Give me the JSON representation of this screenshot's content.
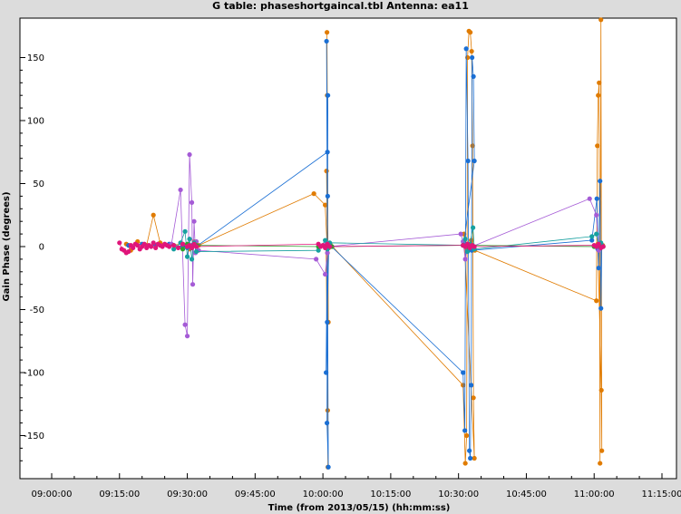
{
  "chart_data": {
    "type": "scatter",
    "title": "G table: phaseshortgaincal.tbl   Antenna: ea11",
    "xlabel": "Time (from 2013/05/15) (hh:mm:ss)",
    "ylabel": "Gain Phase (degrees)",
    "x_unit": "minutes after 09:00:00",
    "xlim": [
      0,
      135
    ],
    "ylim": [
      -180,
      180
    ],
    "x_ticks": [
      {
        "v": 0,
        "label": "09:00:00"
      },
      {
        "v": 15,
        "label": "09:15:00"
      },
      {
        "v": 30,
        "label": "09:30:00"
      },
      {
        "v": 45,
        "label": "09:45:00"
      },
      {
        "v": 60,
        "label": "10:00:00"
      },
      {
        "v": 75,
        "label": "10:15:00"
      },
      {
        "v": 90,
        "label": "10:30:00"
      },
      {
        "v": 105,
        "label": "10:45:00"
      },
      {
        "v": 120,
        "label": "11:00:00"
      },
      {
        "v": 135,
        "label": "11:15:00"
      }
    ],
    "y_ticks": [
      {
        "v": 150,
        "label": "150"
      },
      {
        "v": 100,
        "label": "100"
      },
      {
        "v": 50,
        "label": "50"
      },
      {
        "v": 0,
        "label": "0"
      },
      {
        "v": -50,
        "label": "-50"
      },
      {
        "v": -100,
        "label": "-100"
      },
      {
        "v": -150,
        "label": "-150"
      }
    ],
    "grid": false,
    "legend": "none",
    "series": [
      {
        "color": "#e07b00",
        "points": [
          [
            16.5,
            2
          ],
          [
            17.5,
            -3
          ],
          [
            19,
            4
          ],
          [
            21,
            1
          ],
          [
            22.5,
            25
          ],
          [
            24,
            3
          ],
          [
            26,
            1
          ],
          [
            29,
            2
          ],
          [
            30.5,
            -2
          ],
          [
            31.5,
            4
          ],
          [
            32.5,
            1
          ],
          [
            58,
            42
          ],
          [
            60.5,
            33
          ],
          [
            61,
            -5
          ],
          [
            60.8,
            60
          ],
          [
            61.2,
            -60
          ],
          [
            60.9,
            170
          ],
          [
            61.1,
            -175
          ],
          [
            60.95,
            120
          ],
          [
            61.05,
            -130
          ],
          [
            60.7,
            1
          ],
          [
            61.3,
            -1
          ],
          [
            61.6,
            2
          ],
          [
            91,
            -110
          ],
          [
            91.5,
            -172
          ],
          [
            91.8,
            -150
          ],
          [
            92,
            150
          ],
          [
            92.3,
            171
          ],
          [
            92.6,
            170
          ],
          [
            92.9,
            155
          ],
          [
            93.1,
            80
          ],
          [
            93.3,
            -120
          ],
          [
            93.5,
            -168
          ],
          [
            91.2,
            10
          ],
          [
            91.7,
            2
          ],
          [
            92.1,
            -2
          ],
          [
            92.8,
            5
          ],
          [
            93.6,
            -3
          ],
          [
            120.5,
            -43
          ],
          [
            120.7,
            80
          ],
          [
            120.9,
            120
          ],
          [
            121.1,
            130
          ],
          [
            121.3,
            -172
          ],
          [
            121.5,
            180
          ],
          [
            121.7,
            -162
          ],
          [
            121.6,
            -114
          ],
          [
            120.8,
            2
          ],
          [
            121.2,
            -2
          ],
          [
            121.9,
            1
          ]
        ]
      },
      {
        "color": "#1a6fd4",
        "points": [
          [
            17,
            1
          ],
          [
            20,
            2
          ],
          [
            23,
            1
          ],
          [
            26,
            2
          ],
          [
            29,
            0
          ],
          [
            30,
            -1
          ],
          [
            31,
            1
          ],
          [
            32,
            0
          ],
          [
            61,
            75
          ],
          [
            60.8,
            163
          ],
          [
            61.2,
            -175
          ],
          [
            60.9,
            -140
          ],
          [
            61.1,
            120
          ],
          [
            60.95,
            -60
          ],
          [
            61.05,
            40
          ],
          [
            60.7,
            -100
          ],
          [
            61.3,
            0
          ],
          [
            61.6,
            1
          ],
          [
            91,
            -100
          ],
          [
            91.4,
            -146
          ],
          [
            91.7,
            157
          ],
          [
            92.1,
            68
          ],
          [
            92.4,
            -162
          ],
          [
            92.6,
            -168
          ],
          [
            92.8,
            -110
          ],
          [
            93,
            150
          ],
          [
            93.3,
            135
          ],
          [
            93.5,
            68
          ],
          [
            91.2,
            3
          ],
          [
            91.8,
            0
          ],
          [
            92.9,
            -3
          ],
          [
            119.5,
            5
          ],
          [
            120.6,
            38
          ],
          [
            121,
            -17
          ],
          [
            121.3,
            52
          ],
          [
            121.5,
            -49
          ],
          [
            121.7,
            1
          ],
          [
            121.1,
            2
          ],
          [
            120.8,
            -2
          ]
        ]
      },
      {
        "color": "#a55bd6",
        "points": [
          [
            26.5,
            2
          ],
          [
            28.5,
            45
          ],
          [
            29.5,
            -62
          ],
          [
            30,
            -71
          ],
          [
            30.5,
            73
          ],
          [
            31,
            35
          ],
          [
            31.2,
            -30
          ],
          [
            31.5,
            20
          ],
          [
            31.8,
            -5
          ],
          [
            32,
            4
          ],
          [
            32.5,
            -3
          ],
          [
            58.5,
            -10
          ],
          [
            60.5,
            -22
          ],
          [
            61,
            -5
          ],
          [
            60.8,
            3
          ],
          [
            61.4,
            0
          ],
          [
            90.5,
            10
          ],
          [
            91,
            4
          ],
          [
            91.5,
            -10
          ],
          [
            92,
            2
          ],
          [
            93,
            0
          ],
          [
            119,
            38
          ],
          [
            120.5,
            25
          ],
          [
            121,
            -3
          ],
          [
            121.4,
            3
          ]
        ]
      },
      {
        "color": "#17a0a0",
        "points": [
          [
            27,
            -2
          ],
          [
            28.5,
            3
          ],
          [
            29.5,
            12
          ],
          [
            30,
            -8
          ],
          [
            30.5,
            6
          ],
          [
            31,
            -10
          ],
          [
            31.5,
            3
          ],
          [
            32,
            -4
          ],
          [
            59,
            -3
          ],
          [
            60.5,
            5
          ],
          [
            61,
            -2
          ],
          [
            61.5,
            3
          ],
          [
            91,
            1
          ],
          [
            91.5,
            6
          ],
          [
            92,
            -4
          ],
          [
            92.5,
            2
          ],
          [
            93.2,
            15
          ],
          [
            93.5,
            -2
          ],
          [
            119.5,
            8
          ],
          [
            120.5,
            10
          ],
          [
            121,
            0
          ],
          [
            121.5,
            3
          ]
        ]
      },
      {
        "color": "#2ca02c",
        "points": [
          [
            27,
            1
          ],
          [
            29,
            -2
          ],
          [
            30,
            2
          ],
          [
            31,
            -1
          ],
          [
            32,
            1
          ],
          [
            59,
            0
          ],
          [
            61,
            1
          ],
          [
            62,
            0
          ],
          [
            91,
            1
          ],
          [
            92,
            0
          ],
          [
            93,
            1
          ],
          [
            120,
            0
          ],
          [
            121,
            1
          ],
          [
            122,
            0
          ]
        ]
      },
      {
        "color": "#e0157a",
        "points": [
          [
            15,
            3
          ],
          [
            15.5,
            -2
          ],
          [
            16,
            -3
          ],
          [
            16.5,
            -5
          ],
          [
            17,
            -4
          ],
          [
            17.5,
            1
          ],
          [
            18,
            -1
          ],
          [
            18.5,
            2
          ],
          [
            19,
            1
          ],
          [
            19.5,
            -2
          ],
          [
            20,
            0
          ],
          [
            20.5,
            2
          ],
          [
            21,
            -1
          ],
          [
            21.5,
            1
          ],
          [
            22,
            0
          ],
          [
            22.5,
            3
          ],
          [
            23,
            -1
          ],
          [
            23.5,
            2
          ],
          [
            24,
            1
          ],
          [
            24.5,
            0
          ],
          [
            25,
            2
          ],
          [
            25.5,
            1
          ],
          [
            26,
            0
          ],
          [
            27,
            1
          ],
          [
            28,
            -1
          ],
          [
            29,
            2
          ],
          [
            30,
            0
          ],
          [
            30.5,
            1
          ],
          [
            31,
            -1
          ],
          [
            31.5,
            2
          ],
          [
            32,
            0
          ],
          [
            59,
            2
          ],
          [
            59.5,
            0
          ],
          [
            60,
            1
          ],
          [
            60.5,
            -1
          ],
          [
            61,
            2
          ],
          [
            61.5,
            0
          ],
          [
            91,
            1
          ],
          [
            91.5,
            0
          ],
          [
            92,
            2
          ],
          [
            92.5,
            -1
          ],
          [
            93,
            1
          ],
          [
            93.5,
            0
          ],
          [
            120,
            1
          ],
          [
            120.5,
            0
          ],
          [
            121,
            2
          ],
          [
            121.5,
            -1
          ],
          [
            122,
            0
          ]
        ]
      }
    ]
  },
  "colors": {
    "plot_bg": "#ffffff",
    "window_bg": "#dcdcdc"
  }
}
